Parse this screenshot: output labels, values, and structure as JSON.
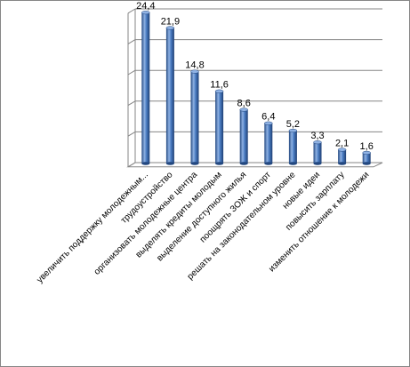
{
  "chart_data": {
    "type": "bar",
    "style": "3d-cylinder",
    "categories": [
      "увеличить поддержку молодежным...",
      "трудоустройство",
      "организовать молодежные центра",
      "выделять кредиты молодым",
      "выделение доступного жилья",
      "поощрять ЗОЖ и спорт",
      "решать на законодательном уровне",
      "новые идеи",
      "повысить зарплату",
      "изменить отношение к молодежи"
    ],
    "value_labels": [
      "24,4",
      "21,9",
      "14,8",
      "11,6",
      "8,6",
      "6,4",
      "5,2",
      "3,3",
      "2,1",
      "1,6"
    ],
    "values": [
      24.4,
      21.9,
      14.8,
      11.6,
      8.6,
      6.4,
      5.2,
      3.3,
      2.1,
      1.6
    ],
    "ylim": [
      0,
      25
    ],
    "grid": true,
    "legend": "none",
    "colors": {
      "bar": "#3f6fb5",
      "bar_dark": "#22477f",
      "bar_light": "#8fb2e4",
      "grid": "#858585"
    }
  }
}
